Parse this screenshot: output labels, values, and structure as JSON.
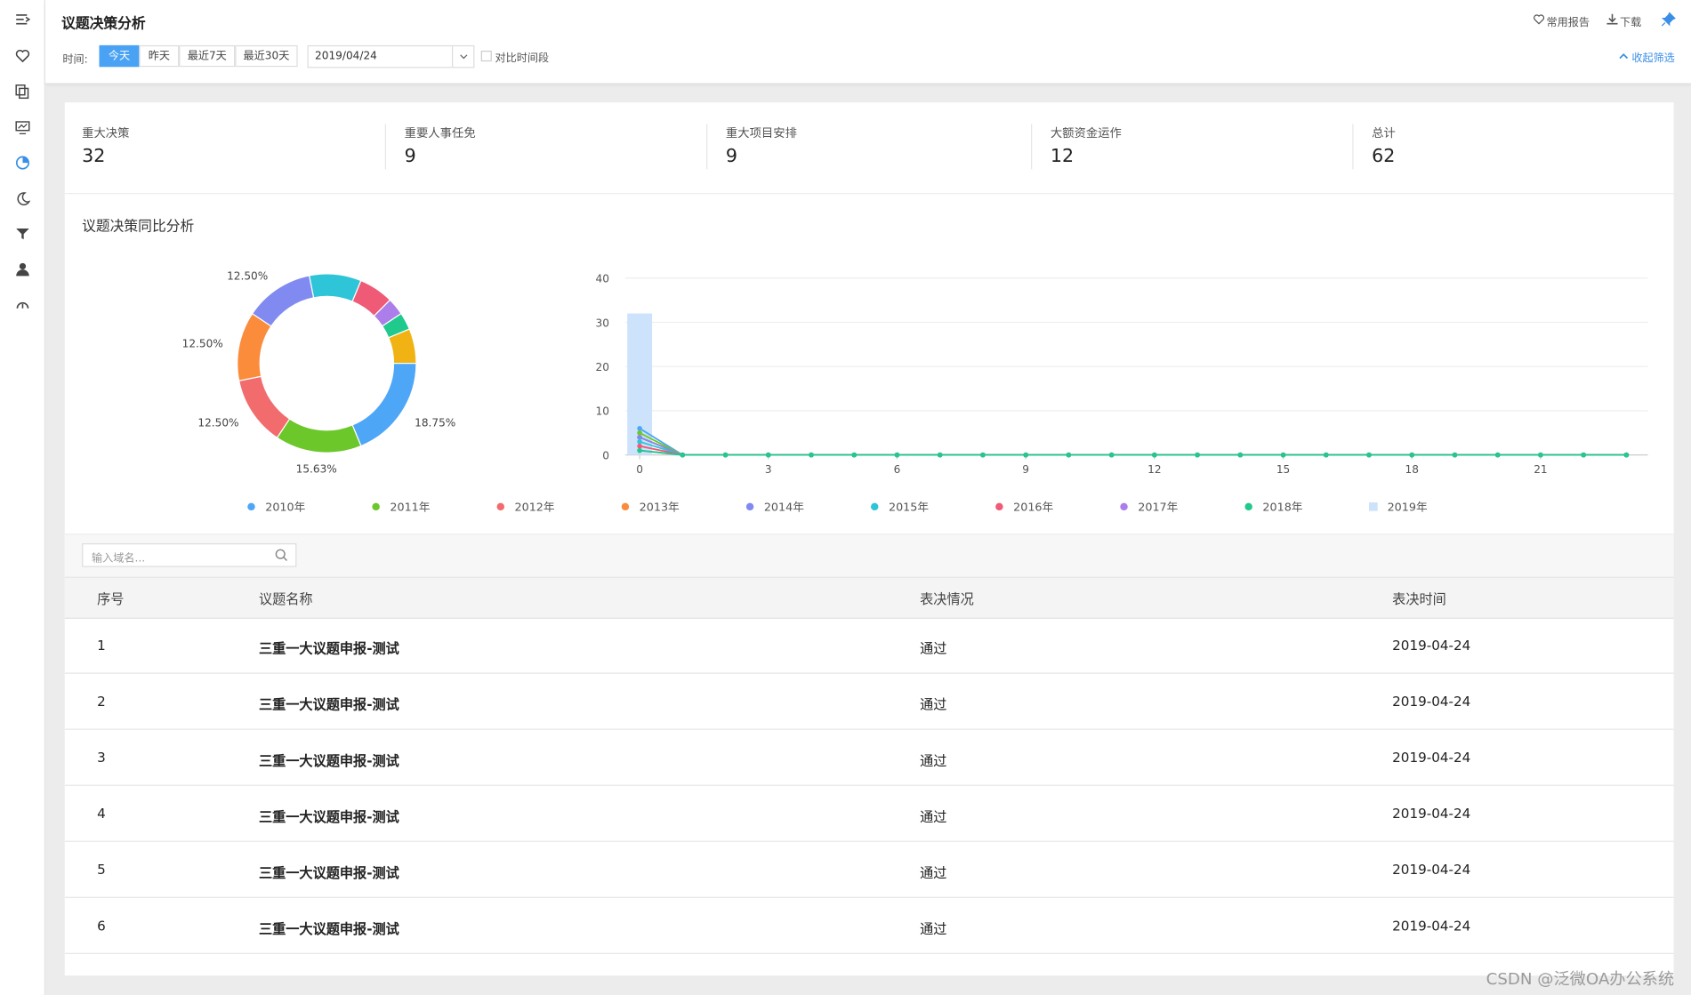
{
  "header": {
    "title": "议题决策分析",
    "actions": [
      "常用报告",
      "下载"
    ]
  },
  "filters": {
    "label": "时间:",
    "options": [
      "今天",
      "昨天",
      "最近7天",
      "最近30天"
    ],
    "active": 0,
    "date": "2019/04/24",
    "compare": "对比时间段",
    "collapse": "收起筛选"
  },
  "stats": [
    {
      "label": "重大决策",
      "value": 32
    },
    {
      "label": "重要人事任免",
      "value": 9
    },
    {
      "label": "重大项目安排",
      "value": 9
    },
    {
      "label": "大额资金运作",
      "value": 12
    },
    {
      "label": "总计",
      "value": 62
    }
  ],
  "section_title": "议题决策同比分析",
  "chart_data": [
    {
      "type": "pie",
      "donut": true,
      "values": [
        18.75,
        15.63,
        12.5,
        12.5,
        12.5,
        9.38,
        6.25,
        3.13,
        3.13,
        6.25
      ],
      "value_labels": [
        "18.75%",
        "15.63%",
        "12.50%",
        "12.50%",
        "12.50%",
        null,
        null,
        null,
        null,
        null
      ],
      "colors": [
        "#4ea6f7",
        "#6cc72a",
        "#f26b6d",
        "#fa8c3c",
        "#808af0",
        "#2fc5d8",
        "#ef5a76",
        "#ab7ee9",
        "#20c98c",
        "#f0b313"
      ]
    },
    {
      "type": "line",
      "x": [
        0,
        1,
        2,
        3,
        4,
        5,
        6,
        7,
        8,
        9,
        10,
        11,
        12,
        13,
        14,
        15,
        16,
        17,
        18,
        19,
        20,
        21,
        22,
        23
      ],
      "xlim": [
        -0.33,
        23.5
      ],
      "xticks": [
        0,
        3,
        6,
        9,
        12,
        15,
        18,
        21
      ],
      "ylim": [
        0,
        40
      ],
      "yticks": [
        0,
        10,
        20,
        30,
        40
      ],
      "grid": true,
      "legend": "bottom",
      "series": [
        {
          "name": "2010年",
          "color": "#4ea6f7",
          "values": [
            6,
            0,
            0,
            0,
            0,
            0,
            0,
            0,
            0,
            0,
            0,
            0,
            0,
            0,
            0,
            0,
            0,
            0,
            0,
            0,
            0,
            0,
            0,
            0
          ]
        },
        {
          "name": "2011年",
          "color": "#6cc72a",
          "values": [
            5,
            0,
            0,
            0,
            0,
            0,
            0,
            0,
            0,
            0,
            0,
            0,
            0,
            0,
            0,
            0,
            0,
            0,
            0,
            0,
            0,
            0,
            0,
            0
          ]
        },
        {
          "name": "2012年",
          "color": "#f26b6d",
          "values": [
            4,
            0,
            0,
            0,
            0,
            0,
            0,
            0,
            0,
            0,
            0,
            0,
            0,
            0,
            0,
            0,
            0,
            0,
            0,
            0,
            0,
            0,
            0,
            0
          ]
        },
        {
          "name": "2013年",
          "color": "#fa8c3c",
          "values": [
            4,
            0,
            0,
            0,
            0,
            0,
            0,
            0,
            0,
            0,
            0,
            0,
            0,
            0,
            0,
            0,
            0,
            0,
            0,
            0,
            0,
            0,
            0,
            0
          ]
        },
        {
          "name": "2014年",
          "color": "#808af0",
          "values": [
            4,
            0,
            0,
            0,
            0,
            0,
            0,
            0,
            0,
            0,
            0,
            0,
            0,
            0,
            0,
            0,
            0,
            0,
            0,
            0,
            0,
            0,
            0,
            0
          ]
        },
        {
          "name": "2015年",
          "color": "#2fc5d8",
          "values": [
            3,
            0,
            0,
            0,
            0,
            0,
            0,
            0,
            0,
            0,
            0,
            0,
            0,
            0,
            0,
            0,
            0,
            0,
            0,
            0,
            0,
            0,
            0,
            0
          ]
        },
        {
          "name": "2016年",
          "color": "#ef5a76",
          "values": [
            2,
            0,
            0,
            0,
            0,
            0,
            0,
            0,
            0,
            0,
            0,
            0,
            0,
            0,
            0,
            0,
            0,
            0,
            0,
            0,
            0,
            0,
            0,
            0
          ]
        },
        {
          "name": "2017年",
          "color": "#ab7ee9",
          "values": [
            1,
            0,
            0,
            0,
            0,
            0,
            0,
            0,
            0,
            0,
            0,
            0,
            0,
            0,
            0,
            0,
            0,
            0,
            0,
            0,
            0,
            0,
            0,
            0
          ]
        },
        {
          "name": "2018年",
          "color": "#20c98c",
          "values": [
            1,
            0,
            0,
            0,
            0,
            0,
            0,
            0,
            0,
            0,
            0,
            0,
            0,
            0,
            0,
            0,
            0,
            0,
            0,
            0,
            0,
            0,
            0,
            0
          ]
        },
        {
          "name": "2019年",
          "color": "#cce3fb",
          "type": "bar",
          "values": [
            32,
            0,
            0,
            0,
            0,
            0,
            0,
            0,
            0,
            0,
            0,
            0,
            0,
            0,
            0,
            0,
            0,
            0,
            0,
            0,
            0,
            0,
            0,
            0
          ]
        }
      ]
    }
  ],
  "search": {
    "placeholder": "输入域名..."
  },
  "table": {
    "columns": [
      "序号",
      "议题名称",
      "表决情况",
      "表决时间"
    ],
    "rows": [
      [
        "1",
        "三重一大议题申报-测试",
        "通过",
        "2019-04-24"
      ],
      [
        "2",
        "三重一大议题申报-测试",
        "通过",
        "2019-04-24"
      ],
      [
        "3",
        "三重一大议题申报-测试",
        "通过",
        "2019-04-24"
      ],
      [
        "4",
        "三重一大议题申报-测试",
        "通过",
        "2019-04-24"
      ],
      [
        "5",
        "三重一大议题申报-测试",
        "通过",
        "2019-04-24"
      ],
      [
        "6",
        "三重一大议题申报-测试",
        "通过",
        "2019-04-24"
      ]
    ]
  },
  "watermark": "CSDN @泛微OA办公系统"
}
